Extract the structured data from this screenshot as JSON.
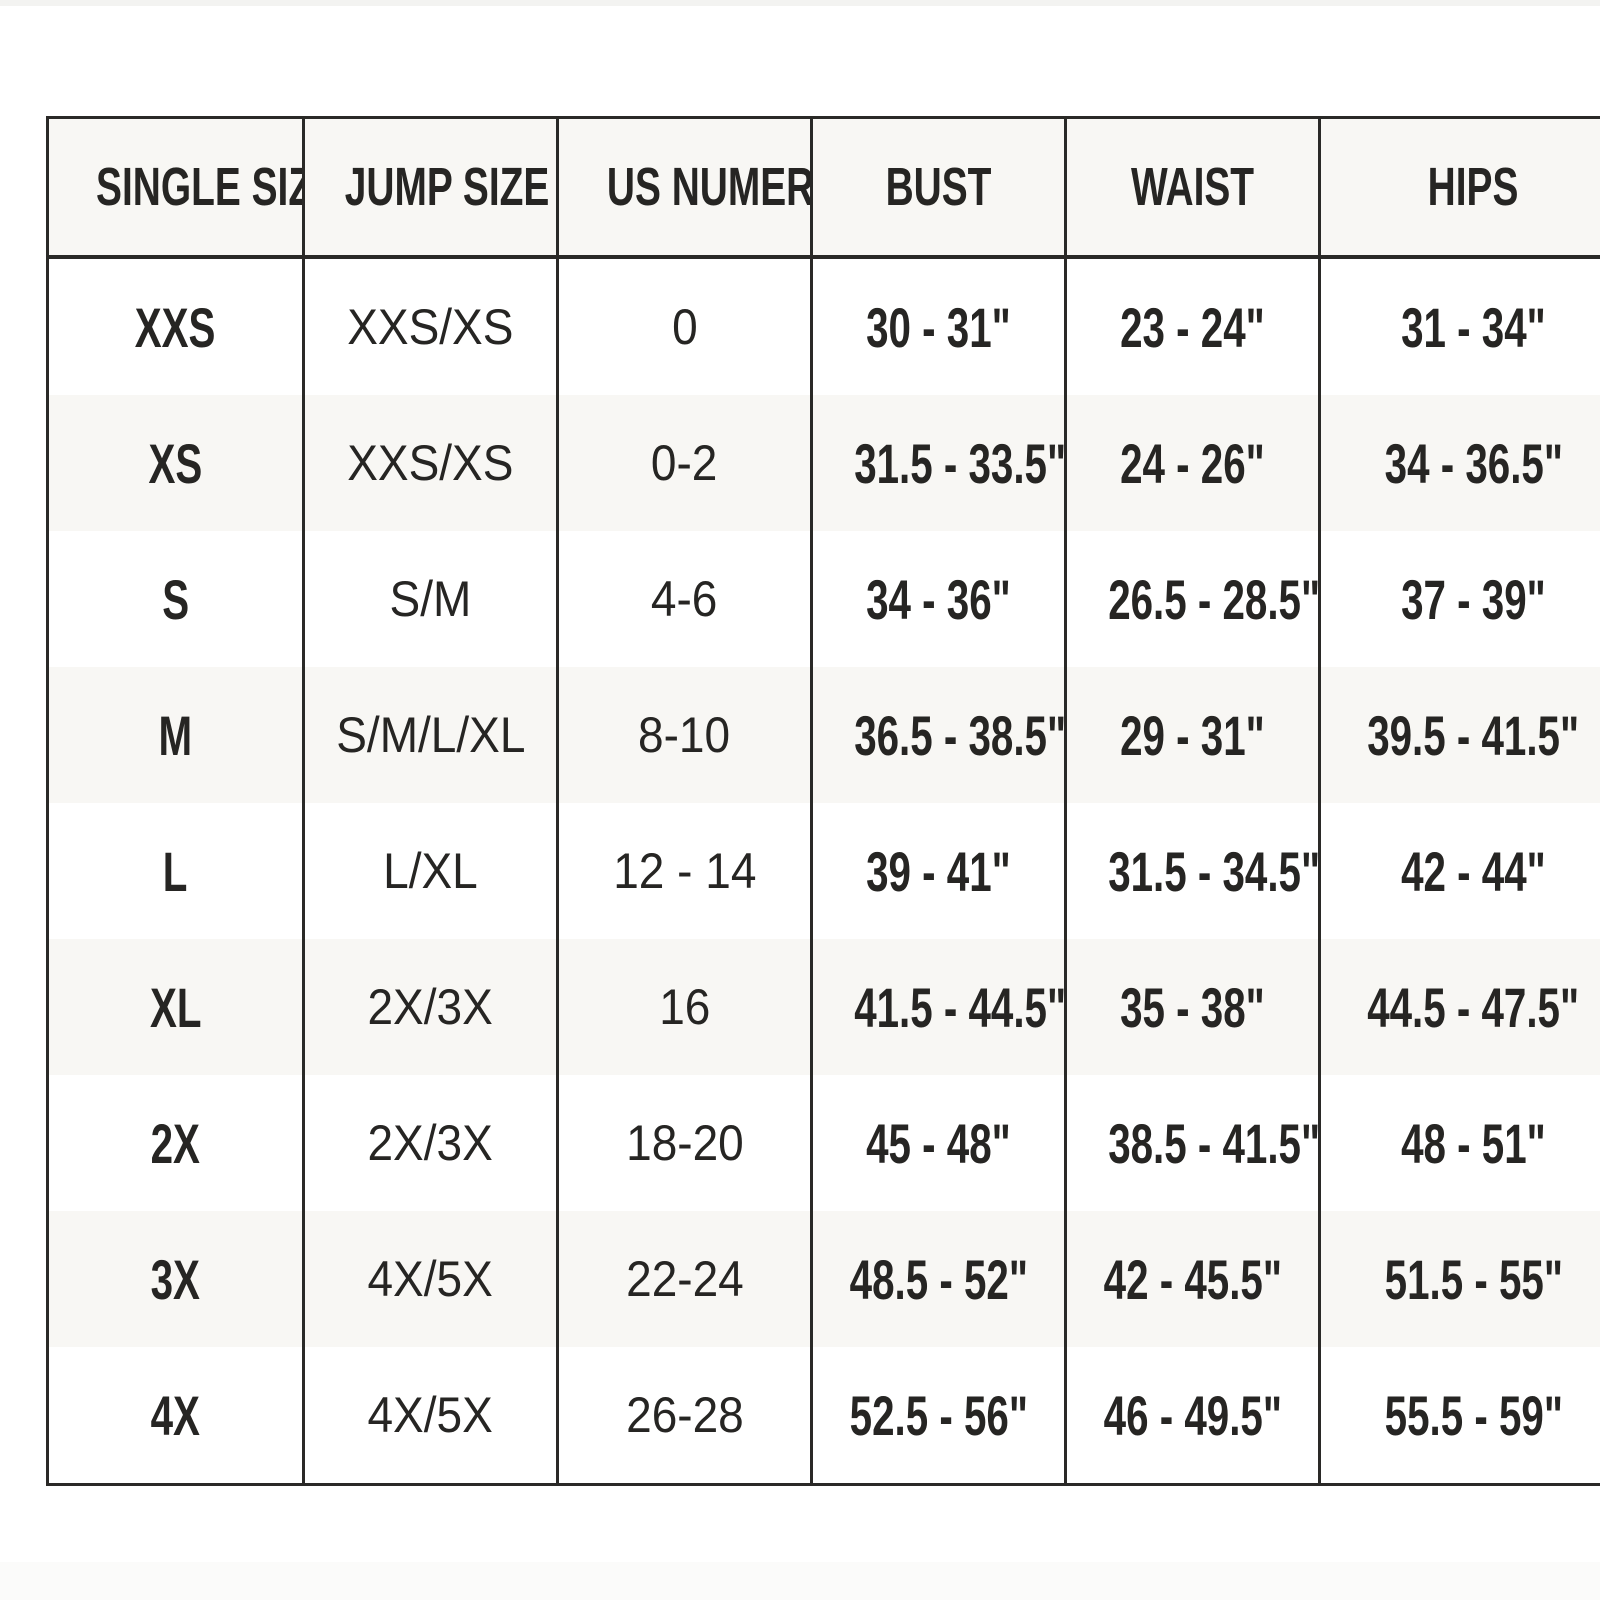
{
  "table": {
    "columns": [
      "SINGLE SIZE",
      "JUMP SIZE",
      "US NUMERIC",
      "BUST",
      "WAIST",
      "HIPS"
    ],
    "rows": [
      [
        "XXS",
        "XXS/XS",
        "0",
        "30 - 31\"",
        "23 - 24\"",
        "31 - 34\""
      ],
      [
        "XS",
        "XXS/XS",
        "0-2",
        "31.5 - 33.5\"",
        "24 - 26\"",
        "34 - 36.5\""
      ],
      [
        "S",
        "S/M",
        "4-6",
        "34 - 36\"",
        "26.5 - 28.5\"",
        "37 - 39\""
      ],
      [
        "M",
        "S/M/L/XL",
        "8-10",
        "36.5 - 38.5\"",
        "29 - 31\"",
        "39.5 - 41.5\""
      ],
      [
        "L",
        "L/XL",
        "12 - 14",
        "39 - 41\"",
        "31.5 - 34.5\"",
        "42 - 44\""
      ],
      [
        "XL",
        "2X/3X",
        "16",
        "41.5 - 44.5\"",
        "35 - 38\"",
        "44.5 - 47.5\""
      ],
      [
        "2X",
        "2X/3X",
        "18-20",
        "45 - 48\"",
        "38.5 - 41.5\"",
        "48 - 51\""
      ],
      [
        "3X",
        "4X/5X",
        "22-24",
        "48.5 - 52\"",
        "42 - 45.5\"",
        "51.5 - 55\""
      ],
      [
        "4X",
        "4X/5X",
        "26-28",
        "52.5 - 56\"",
        "46 - 49.5\"",
        "55.5 - 59\""
      ]
    ]
  },
  "colors": {
    "border": "#2a2927",
    "alt_row": "#f8f7f4",
    "text": "#262523"
  }
}
